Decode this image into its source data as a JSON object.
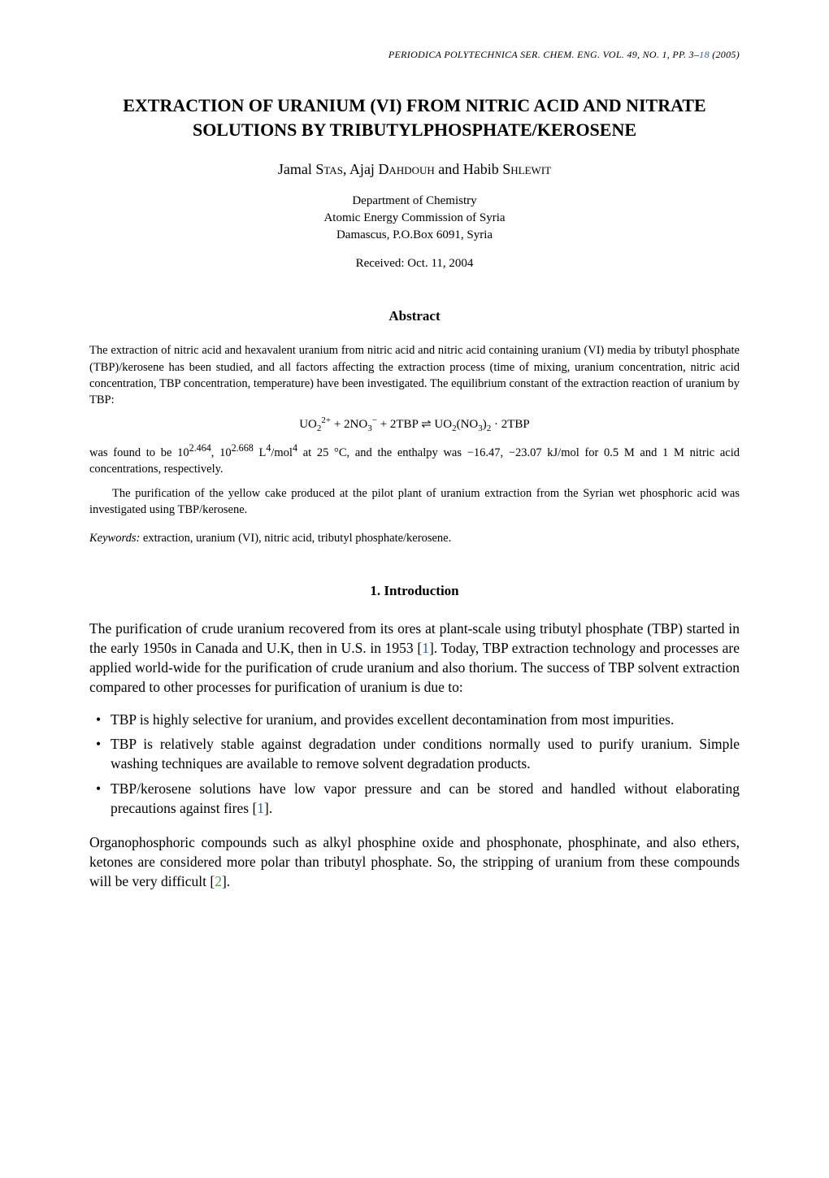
{
  "meta": {
    "journal_line_prefix": "PERIODICA POLYTECHNICA SER. CHEM. ENG. VOL. 49, NO. 1, PP. 3–",
    "journal_line_link": "18",
    "journal_line_suffix": " (2005)"
  },
  "title": "EXTRACTION OF URANIUM (VI) FROM NITRIC ACID AND NITRATE SOLUTIONS BY TRIBUTYLPHOSPHATE/KEROSENE",
  "authors": {
    "a1_first": "Jamal ",
    "a1_last": "Stas",
    "sep1": ", ",
    "a2_first": "Ajaj ",
    "a2_last": "Dahdouh",
    "sep2": " and ",
    "a3_first": "Habib ",
    "a3_last": "Shlewit"
  },
  "affiliation": {
    "line1": "Department of Chemistry",
    "line2": "Atomic Energy Commission of Syria",
    "line3": "Damascus, P.O.Box 6091, Syria"
  },
  "received": "Received: Oct. 11, 2004",
  "abstract": {
    "heading": "Abstract",
    "para1": "The extraction of nitric acid and hexavalent uranium from nitric acid and nitric acid containing uranium (VI) media by tributyl phosphate (TBP)/kerosene has been studied, and all factors affecting the extraction process (time of mixing, uranium concentration, nitric acid concentration, TBP concentration, temperature) have been investigated. The equilibrium constant of the extraction reaction of uranium by TBP:",
    "para2_prefix": "was found to be 10",
    "para2_exp1": "2.464",
    "para2_mid1": ", 10",
    "para2_exp2": "2.668",
    "para2_mid2": " L",
    "para2_exp3": "4",
    "para2_mid3": "/mol",
    "para2_exp4": "4",
    "para2_suffix": " at 25 °C, and the enthalpy was −16.47, −23.07 kJ/mol for 0.5 M and 1 M nitric acid concentrations, respectively.",
    "para3": "The purification of the yellow cake produced at the pilot plant of uranium extraction from the Syrian wet phosphoric acid was investigated using TBP/kerosene."
  },
  "keywords": {
    "label": "Keywords:",
    "text": " extraction, uranium (VI), nitric acid, tributyl phosphate/kerosene."
  },
  "section1": {
    "heading": "1. Introduction",
    "p1_a": "The purification of crude uranium recovered from its ores at plant-scale using tributyl phosphate (TBP) started in the early 1950s in Canada and U.K, then in U.S. in 1953 [",
    "p1_cite1": "1",
    "p1_b": "]. Today, TBP extraction technology and processes are applied world-wide for the purification of crude uranium and also thorium. The success of TBP solvent extraction compared to other processes for purification of uranium is due to:",
    "bullets": {
      "b1": "TBP is highly selective for uranium, and provides excellent decontamination from most impurities.",
      "b2": "TBP is relatively stable against degradation under conditions normally used to purify uranium. Simple washing techniques are available to remove solvent degradation products.",
      "b3_a": "TBP/kerosene solutions have low vapor pressure and can be stored and handled without elaborating precautions against fires [",
      "b3_cite": "1",
      "b3_b": "]."
    },
    "p2_a": "Organophosphoric compounds such as alkyl phosphine oxide and phosphonate, phosphinate, and also ethers, ketones are considered more polar than tributyl phosphate. So, the stripping of uranium from these compounds will be very difficult [",
    "p2_cite": "2",
    "p2_b": "]."
  }
}
